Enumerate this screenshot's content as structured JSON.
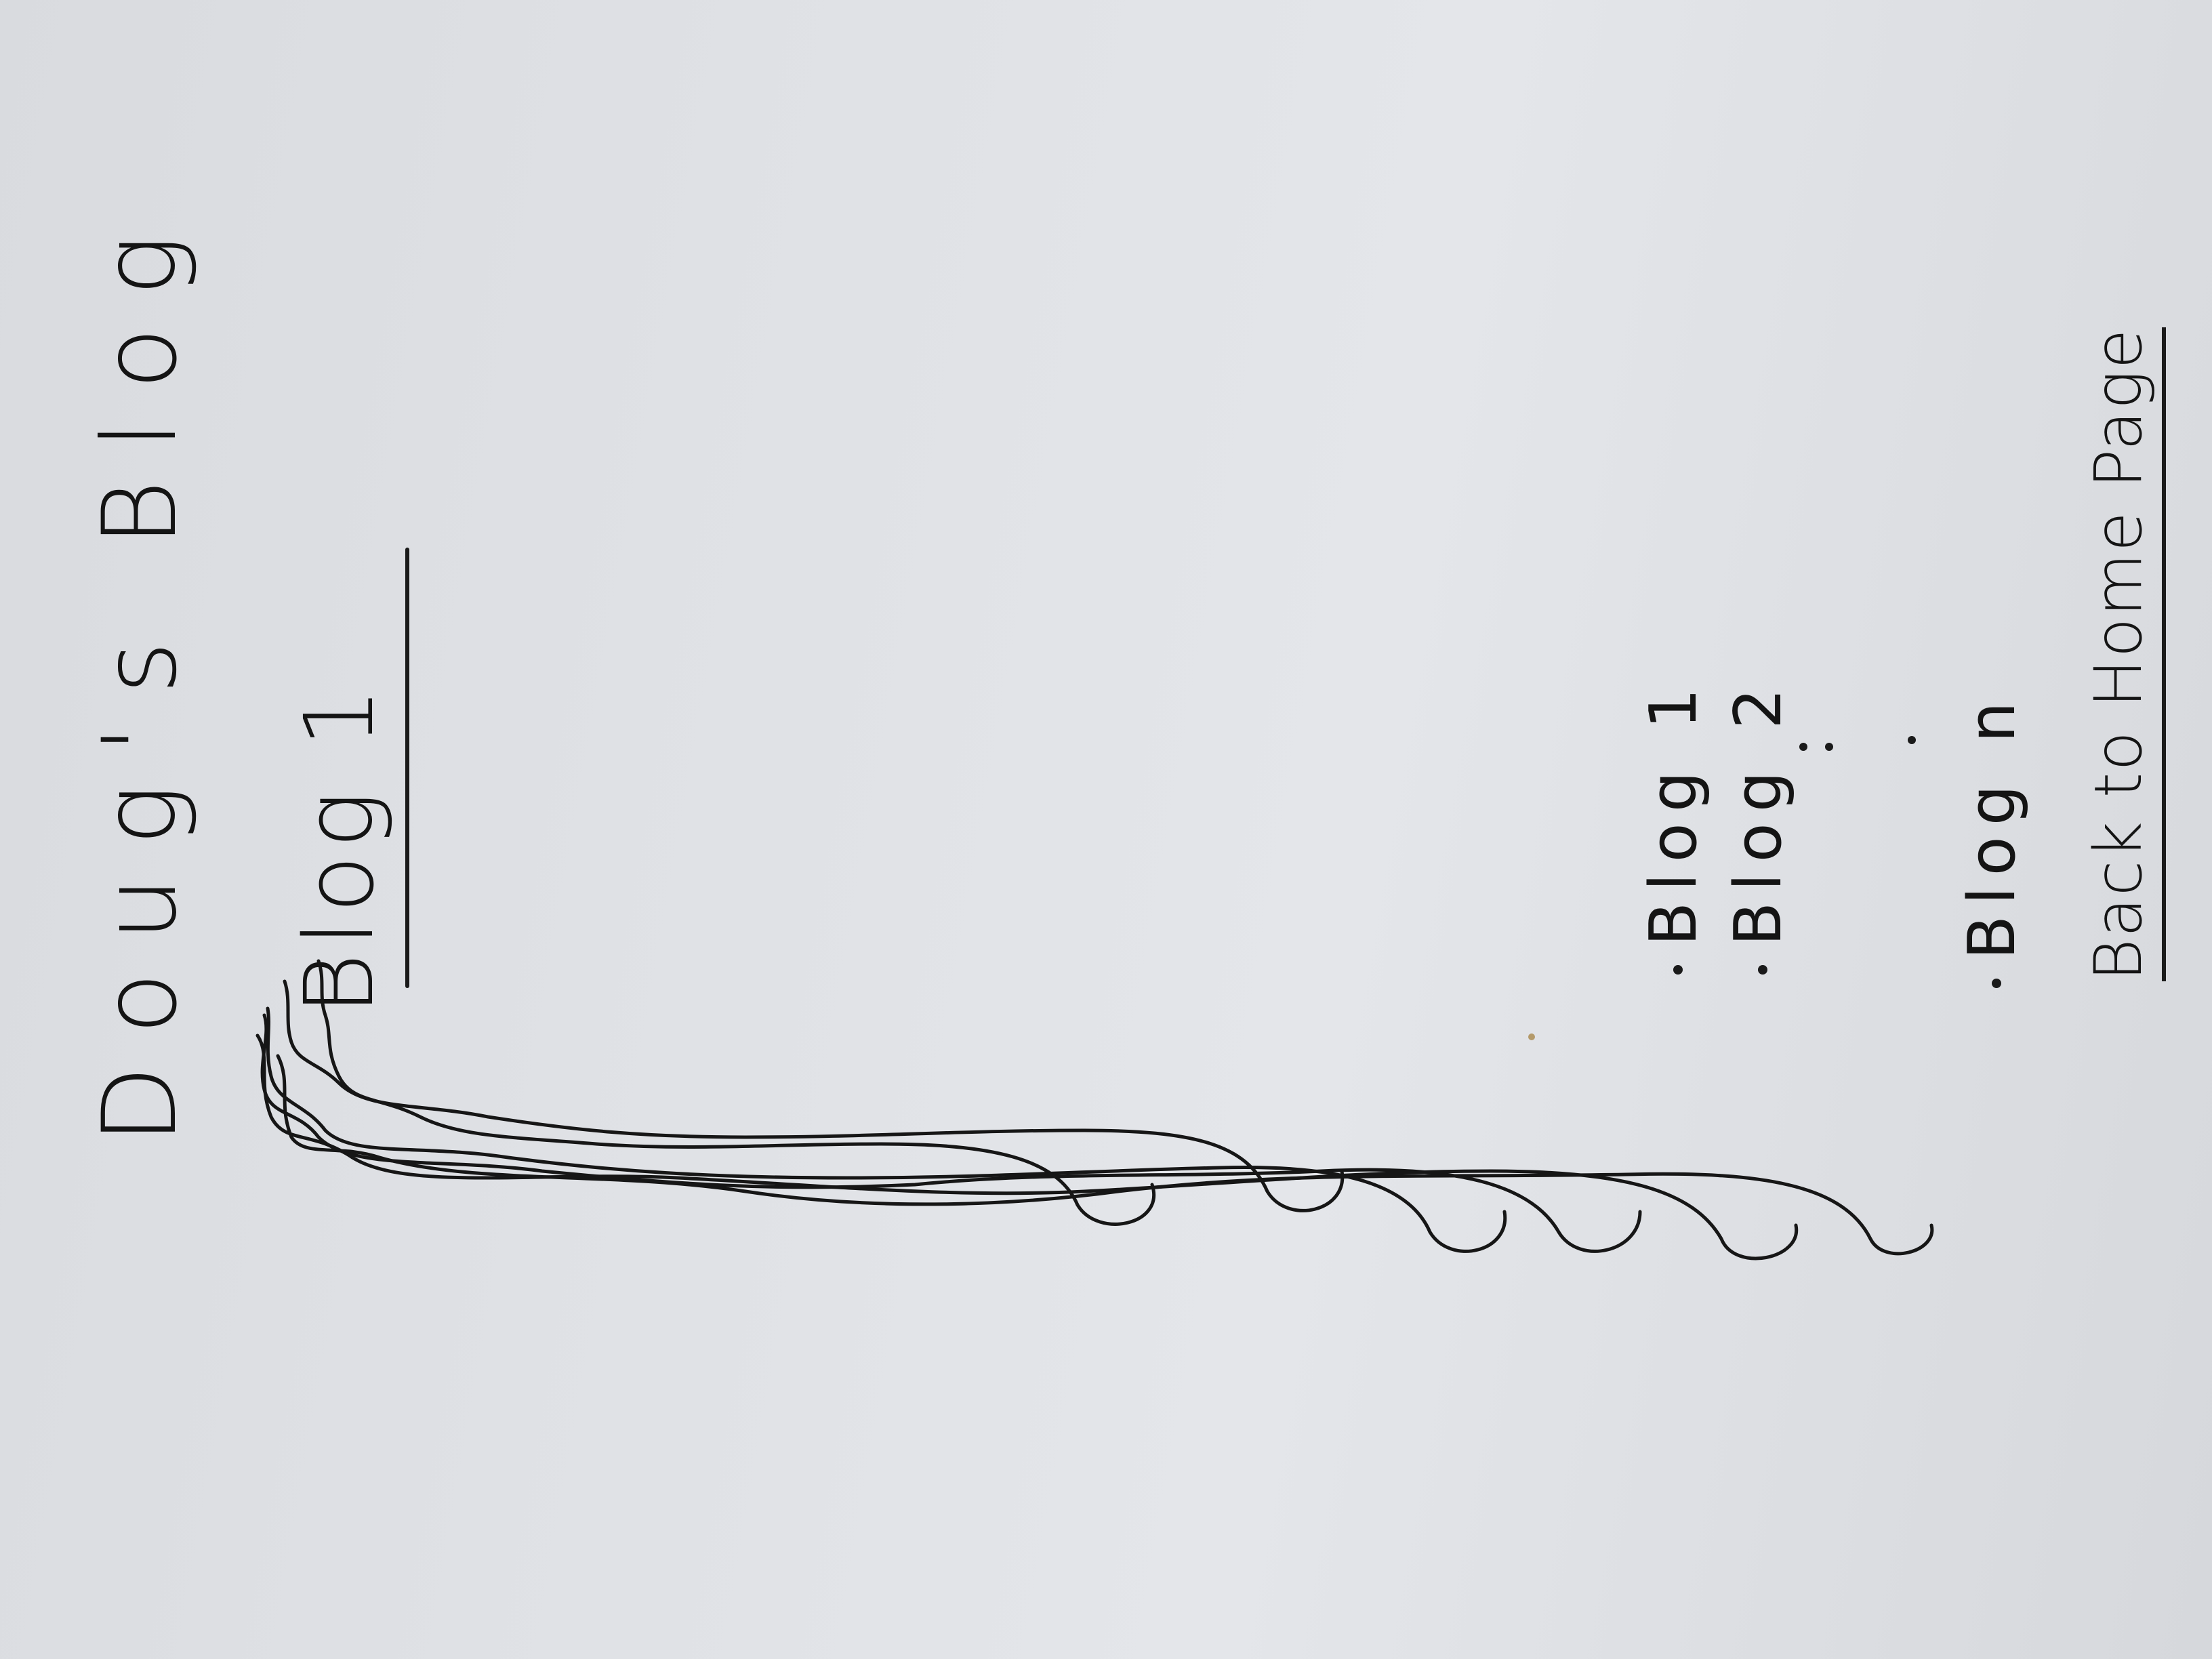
{
  "site": {
    "title": "Doug's Blog"
  },
  "post": {
    "title": "Blog 1"
  },
  "post_list": {
    "items": [
      "Blog 1",
      "Blog 2",
      "Blog n"
    ]
  },
  "navigation": {
    "back_link": "Back to Home Page"
  },
  "colors": {
    "paper": "#e0e2e6",
    "ink": "#141414"
  }
}
